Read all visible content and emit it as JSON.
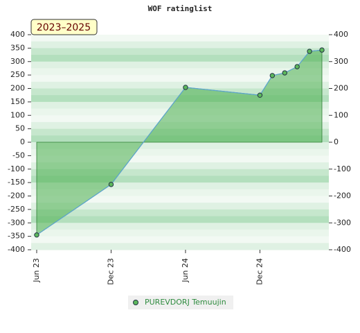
{
  "chart_data": {
    "type": "area",
    "title": "WOF ratinglist",
    "annotation": "2023–2025",
    "x": [
      "2023-06",
      "2023-12",
      "2024-06",
      "2024-12",
      "2025-01",
      "2025-02",
      "2025-03",
      "2025-04",
      "2025-05"
    ],
    "series": [
      {
        "name": "PUREVDORJ Temuujin",
        "color": "#5ba3d0",
        "fill": "#4caf50",
        "values": [
          -345,
          -157,
          204,
          175,
          248,
          258,
          281,
          338,
          343
        ]
      }
    ],
    "xlim": [
      "2023-06",
      "2025-05"
    ],
    "xticks": [
      {
        "value": "2023-06",
        "label": "Jun 23"
      },
      {
        "value": "2023-12",
        "label": "Dec 23"
      },
      {
        "value": "2024-06",
        "label": "Jun 24"
      },
      {
        "value": "2024-12",
        "label": "Dec 24"
      }
    ],
    "ylim": [
      -400,
      400
    ],
    "yticks": [
      -400,
      -350,
      -300,
      -250,
      -200,
      -150,
      -100,
      -50,
      0,
      50,
      100,
      150,
      200,
      250,
      300,
      350,
      400
    ],
    "y2lim": [
      -400,
      400
    ],
    "y2ticks": [
      -400,
      -300,
      -200,
      -100,
      0,
      100,
      200,
      300,
      400
    ]
  }
}
